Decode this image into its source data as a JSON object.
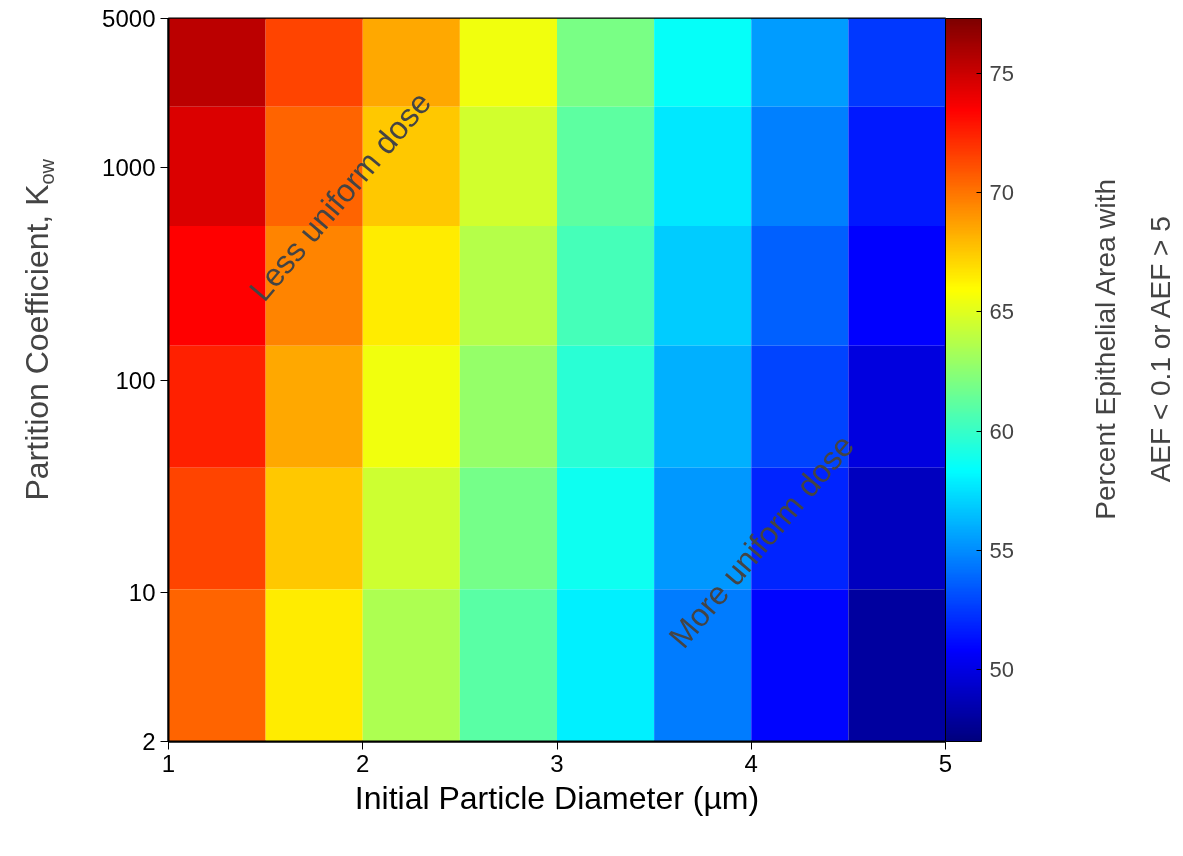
{
  "chart_data": {
    "type": "heatmap",
    "xlabel": "Initial Particle Diameter (µm)",
    "ylabel": "Partition Coefficient, K$_{ow}$",
    "clabel": "Percent Epithelial Area with\nAEF < 0.1 or AEF > 5",
    "x": [
      1.25,
      1.75,
      2.25,
      2.75,
      3.25,
      3.75,
      4.25,
      4.75
    ],
    "y": [
      3700,
      1000,
      280,
      75,
      20,
      5.4
    ],
    "cells": [
      [
        75.5,
        71.5,
        68.5,
        65.5,
        62,
        58.5,
        55.5,
        52.5
      ],
      [
        74.5,
        70.5,
        67.5,
        64.6,
        61.2,
        57.7,
        54.6,
        51.6
      ],
      [
        73.5,
        69.5,
        66.5,
        63.7,
        60.4,
        56.9,
        53.7,
        50.8
      ],
      [
        72.5,
        68.5,
        65.5,
        62.8,
        59.6,
        56.1,
        52.8,
        49.9
      ],
      [
        71.5,
        67.5,
        64.5,
        61.9,
        58.8,
        55.3,
        51.9,
        49
      ],
      [
        70.5,
        66.5,
        63.5,
        61,
        58,
        54.5,
        51,
        48
      ]
    ],
    "clim": [
      47,
      77.3
    ],
    "cticks": [
      50,
      55,
      60,
      65,
      70,
      75
    ],
    "xlim": [
      1,
      5
    ],
    "xticks": [
      1,
      2,
      3,
      4,
      5
    ],
    "ylim": [
      2,
      5000
    ],
    "yticks": [
      2,
      10,
      100,
      1000,
      5000
    ],
    "log": "y",
    "annotations": [
      "Less uniform dose",
      "More uniform dose"
    ]
  }
}
